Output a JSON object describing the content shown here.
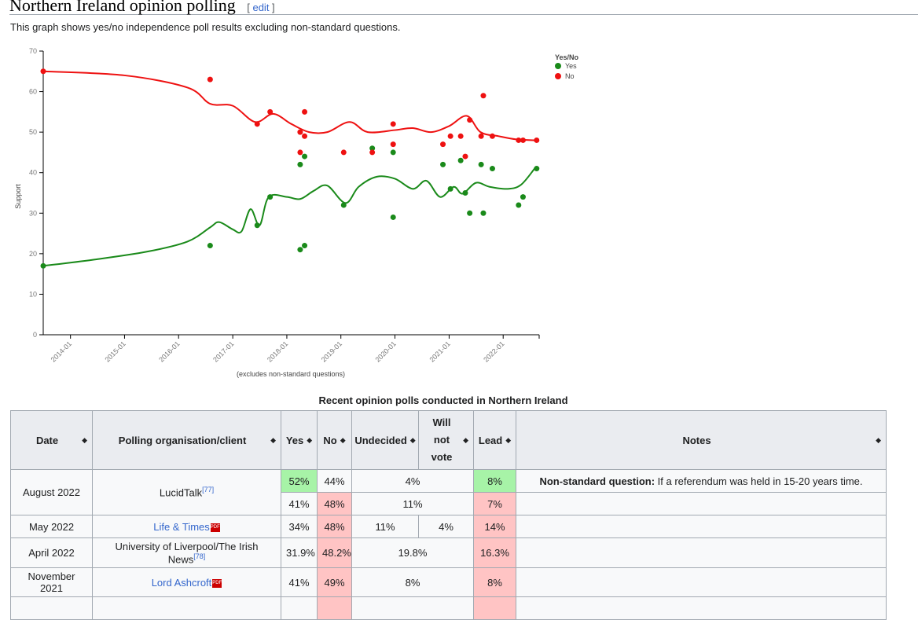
{
  "section": {
    "title": "Northern Ireland opinion polling",
    "edit_label": "edit"
  },
  "intro": "This graph shows yes/no independence poll results excluding non-standard questions.",
  "chart_data": {
    "type": "scatter",
    "title": "",
    "xlabel": "(excludes non-standard questions)",
    "ylabel": "Support",
    "ylim": [
      0,
      70
    ],
    "yticks": [
      0,
      10,
      20,
      30,
      40,
      50,
      60,
      70
    ],
    "xticks": [
      "2014-01",
      "2015-01",
      "2016-01",
      "2017-01",
      "2018-01",
      "2019-01",
      "2020-01",
      "2021-01",
      "2022-01"
    ],
    "xlim": [
      "2013-07-01",
      "2022-09-01"
    ],
    "legend": {
      "title": "Yes/No",
      "position": "top-right"
    },
    "series": [
      {
        "name": "Yes",
        "color": "#1a8a1a",
        "points": [
          [
            "2013-07-01",
            17
          ],
          [
            "2016-08-01",
            22
          ],
          [
            "2017-06-15",
            27
          ],
          [
            "2017-09-10",
            34
          ],
          [
            "2018-04-01",
            42
          ],
          [
            "2018-04-01",
            21
          ],
          [
            "2018-05-01",
            22
          ],
          [
            "2018-05-01",
            44
          ],
          [
            "2019-01-20",
            32
          ],
          [
            "2019-08-01",
            46
          ],
          [
            "2019-12-20",
            45
          ],
          [
            "2019-12-20",
            29
          ],
          [
            "2020-11-20",
            42
          ],
          [
            "2021-01-10",
            36
          ],
          [
            "2021-03-20",
            43
          ],
          [
            "2021-04-20",
            35
          ],
          [
            "2021-05-20",
            30
          ],
          [
            "2021-08-05",
            42
          ],
          [
            "2021-08-20",
            30
          ],
          [
            "2021-10-20",
            41
          ],
          [
            "2022-04-15",
            32
          ],
          [
            "2022-05-15",
            34
          ],
          [
            "2022-08-15",
            41
          ]
        ],
        "trend": [
          [
            "2013-07-01",
            17
          ],
          [
            "2014-06-01",
            18.5
          ],
          [
            "2015-06-01",
            20.5
          ],
          [
            "2016-03-01",
            23
          ],
          [
            "2016-08-01",
            26.5
          ],
          [
            "2016-10-01",
            27.8
          ],
          [
            "2017-01-01",
            26
          ],
          [
            "2017-03-01",
            25.5
          ],
          [
            "2017-05-01",
            31
          ],
          [
            "2017-07-01",
            27
          ],
          [
            "2017-09-01",
            34
          ],
          [
            "2018-01-01",
            34
          ],
          [
            "2018-04-01",
            33.5
          ],
          [
            "2018-07-01",
            35.5
          ],
          [
            "2018-10-01",
            36.8
          ],
          [
            "2019-02-01",
            32.5
          ],
          [
            "2019-05-01",
            36.5
          ],
          [
            "2019-09-01",
            39
          ],
          [
            "2020-01-01",
            38.5
          ],
          [
            "2020-05-01",
            36
          ],
          [
            "2020-08-01",
            38
          ],
          [
            "2020-11-01",
            34
          ],
          [
            "2021-02-01",
            36.5
          ],
          [
            "2021-04-01",
            34.8
          ],
          [
            "2021-07-01",
            37.5
          ],
          [
            "2021-10-01",
            36.5
          ],
          [
            "2022-02-01",
            36
          ],
          [
            "2022-05-01",
            37
          ],
          [
            "2022-08-01",
            41
          ]
        ]
      },
      {
        "name": "No",
        "color": "#ee1111",
        "points": [
          [
            "2013-07-01",
            65
          ],
          [
            "2016-08-01",
            63
          ],
          [
            "2017-06-15",
            52
          ],
          [
            "2017-09-10",
            55
          ],
          [
            "2018-04-01",
            50
          ],
          [
            "2018-04-01",
            45
          ],
          [
            "2018-05-01",
            49
          ],
          [
            "2018-05-01",
            55
          ],
          [
            "2019-01-20",
            45
          ],
          [
            "2019-08-01",
            45
          ],
          [
            "2019-12-20",
            52
          ],
          [
            "2019-12-20",
            47
          ],
          [
            "2020-11-20",
            47
          ],
          [
            "2021-01-10",
            49
          ],
          [
            "2021-03-20",
            49
          ],
          [
            "2021-04-20",
            44
          ],
          [
            "2021-05-20",
            53
          ],
          [
            "2021-08-05",
            49
          ],
          [
            "2021-08-20",
            59
          ],
          [
            "2021-10-20",
            49
          ],
          [
            "2022-04-15",
            48
          ],
          [
            "2022-05-15",
            48
          ],
          [
            "2022-08-15",
            48
          ]
        ],
        "trend": [
          [
            "2013-07-01",
            65
          ],
          [
            "2015-01-01",
            64
          ],
          [
            "2016-03-01",
            61
          ],
          [
            "2016-08-01",
            57
          ],
          [
            "2017-01-01",
            56.5
          ],
          [
            "2017-06-01",
            52.5
          ],
          [
            "2017-10-01",
            54.5
          ],
          [
            "2018-02-01",
            52
          ],
          [
            "2018-06-01",
            50
          ],
          [
            "2018-10-01",
            50
          ],
          [
            "2019-03-01",
            52.5
          ],
          [
            "2019-07-01",
            50
          ],
          [
            "2020-01-01",
            50.5
          ],
          [
            "2020-05-01",
            51
          ],
          [
            "2020-09-01",
            50
          ],
          [
            "2021-01-01",
            51.5
          ],
          [
            "2021-05-01",
            54
          ],
          [
            "2021-08-01",
            50
          ],
          [
            "2021-12-01",
            49
          ],
          [
            "2022-04-01",
            48.2
          ],
          [
            "2022-08-01",
            48
          ]
        ]
      }
    ]
  },
  "table": {
    "caption": "Recent opinion polls conducted in Northern Ireland",
    "headers": [
      "Date",
      "Polling organisation/client",
      "Yes",
      "No",
      "Undecided",
      "Will not vote",
      "Lead",
      "Notes"
    ],
    "rows": [
      {
        "date": "August 2022",
        "pollster": "LucidTalk",
        "ref": "[77]",
        "yes": "52%",
        "no": "44%",
        "undecided": "4%",
        "lead": "8%",
        "note_bold": "Non-standard question:",
        "note": " If a referendum was held in 15-20 years time."
      },
      {
        "yes": "41%",
        "no": "48%",
        "undecided": "11%",
        "lead": "7%"
      },
      {
        "date": "May 2022",
        "pollster": "Life & Times",
        "yes": "34%",
        "no": "48%",
        "undecided": "11%",
        "willnot": "4%",
        "lead": "14%"
      },
      {
        "date": "April 2022",
        "pollster": "University of Liverpool/The Irish News",
        "ref": "[78]",
        "yes": "31.9%",
        "no": "48.2%",
        "undecided": "19.8%",
        "lead": "16.3%"
      },
      {
        "date": "November 2021",
        "pollster": "Lord Ashcroft",
        "yes": "41%",
        "no": "49%",
        "undecided": "8%",
        "lead": "8%"
      }
    ]
  }
}
